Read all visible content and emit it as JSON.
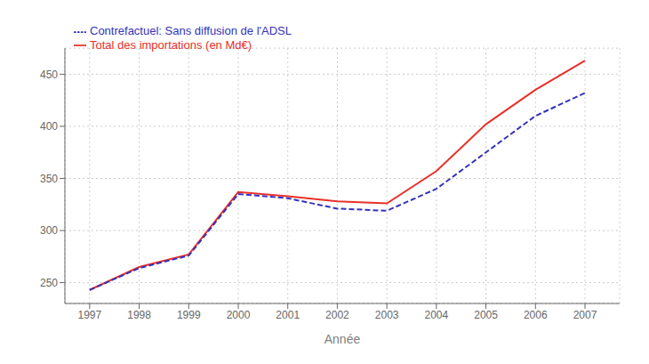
{
  "chart_data": {
    "type": "line",
    "x": [
      1997,
      1998,
      1999,
      2000,
      2001,
      2002,
      2003,
      2004,
      2005,
      2006,
      2007
    ],
    "xlabel": "Année",
    "xlim": [
      1996.5,
      2007.7
    ],
    "xticks": [
      1997,
      1998,
      1999,
      2000,
      2001,
      2002,
      2003,
      2004,
      2005,
      2006,
      2007
    ],
    "ylim": [
      230,
      475
    ],
    "yticks": [
      250,
      300,
      350,
      400,
      450
    ],
    "grid": true,
    "legend": "upper left",
    "series": [
      {
        "name": "Total des importations (en Md€)",
        "color": "#e8302a",
        "line_style": "solid",
        "values": [
          243,
          265,
          277,
          337,
          333,
          328,
          326,
          357,
          402,
          435,
          463
        ]
      },
      {
        "name": "Contrefactuel: Sans diffusion de l'ADSL",
        "color": "#3333bb",
        "line_style": "dashed",
        "values": [
          243,
          264,
          276,
          335,
          331,
          321,
          319,
          340,
          375,
          410,
          432
        ]
      }
    ]
  }
}
